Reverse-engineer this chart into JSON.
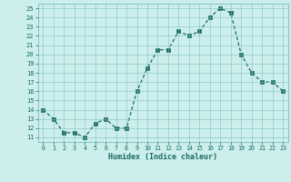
{
  "x": [
    0,
    1,
    2,
    3,
    4,
    5,
    6,
    7,
    8,
    9,
    10,
    11,
    12,
    13,
    14,
    15,
    16,
    17,
    18,
    19,
    20,
    21,
    22,
    23
  ],
  "y": [
    14,
    13,
    11.5,
    11.5,
    11,
    12.5,
    13,
    12,
    12,
    16,
    18.5,
    20.5,
    20.5,
    22.5,
    22,
    22.5,
    24,
    25,
    24.5,
    20,
    18,
    17,
    17,
    16
  ],
  "line_color": "#1a6b5e",
  "marker_color": "#1a6b5e",
  "bg_color": "#cceeed",
  "grid_color": "#7abdb8",
  "xlabel": "Humidex (Indice chaleur)",
  "xlim": [
    -0.5,
    23.5
  ],
  "ylim": [
    10.5,
    25.5
  ],
  "yticks": [
    11,
    12,
    13,
    14,
    15,
    16,
    17,
    18,
    19,
    20,
    21,
    22,
    23,
    24,
    25
  ],
  "xticks": [
    0,
    1,
    2,
    3,
    4,
    5,
    6,
    7,
    8,
    9,
    10,
    11,
    12,
    13,
    14,
    15,
    16,
    17,
    18,
    19,
    20,
    21,
    22,
    23
  ]
}
